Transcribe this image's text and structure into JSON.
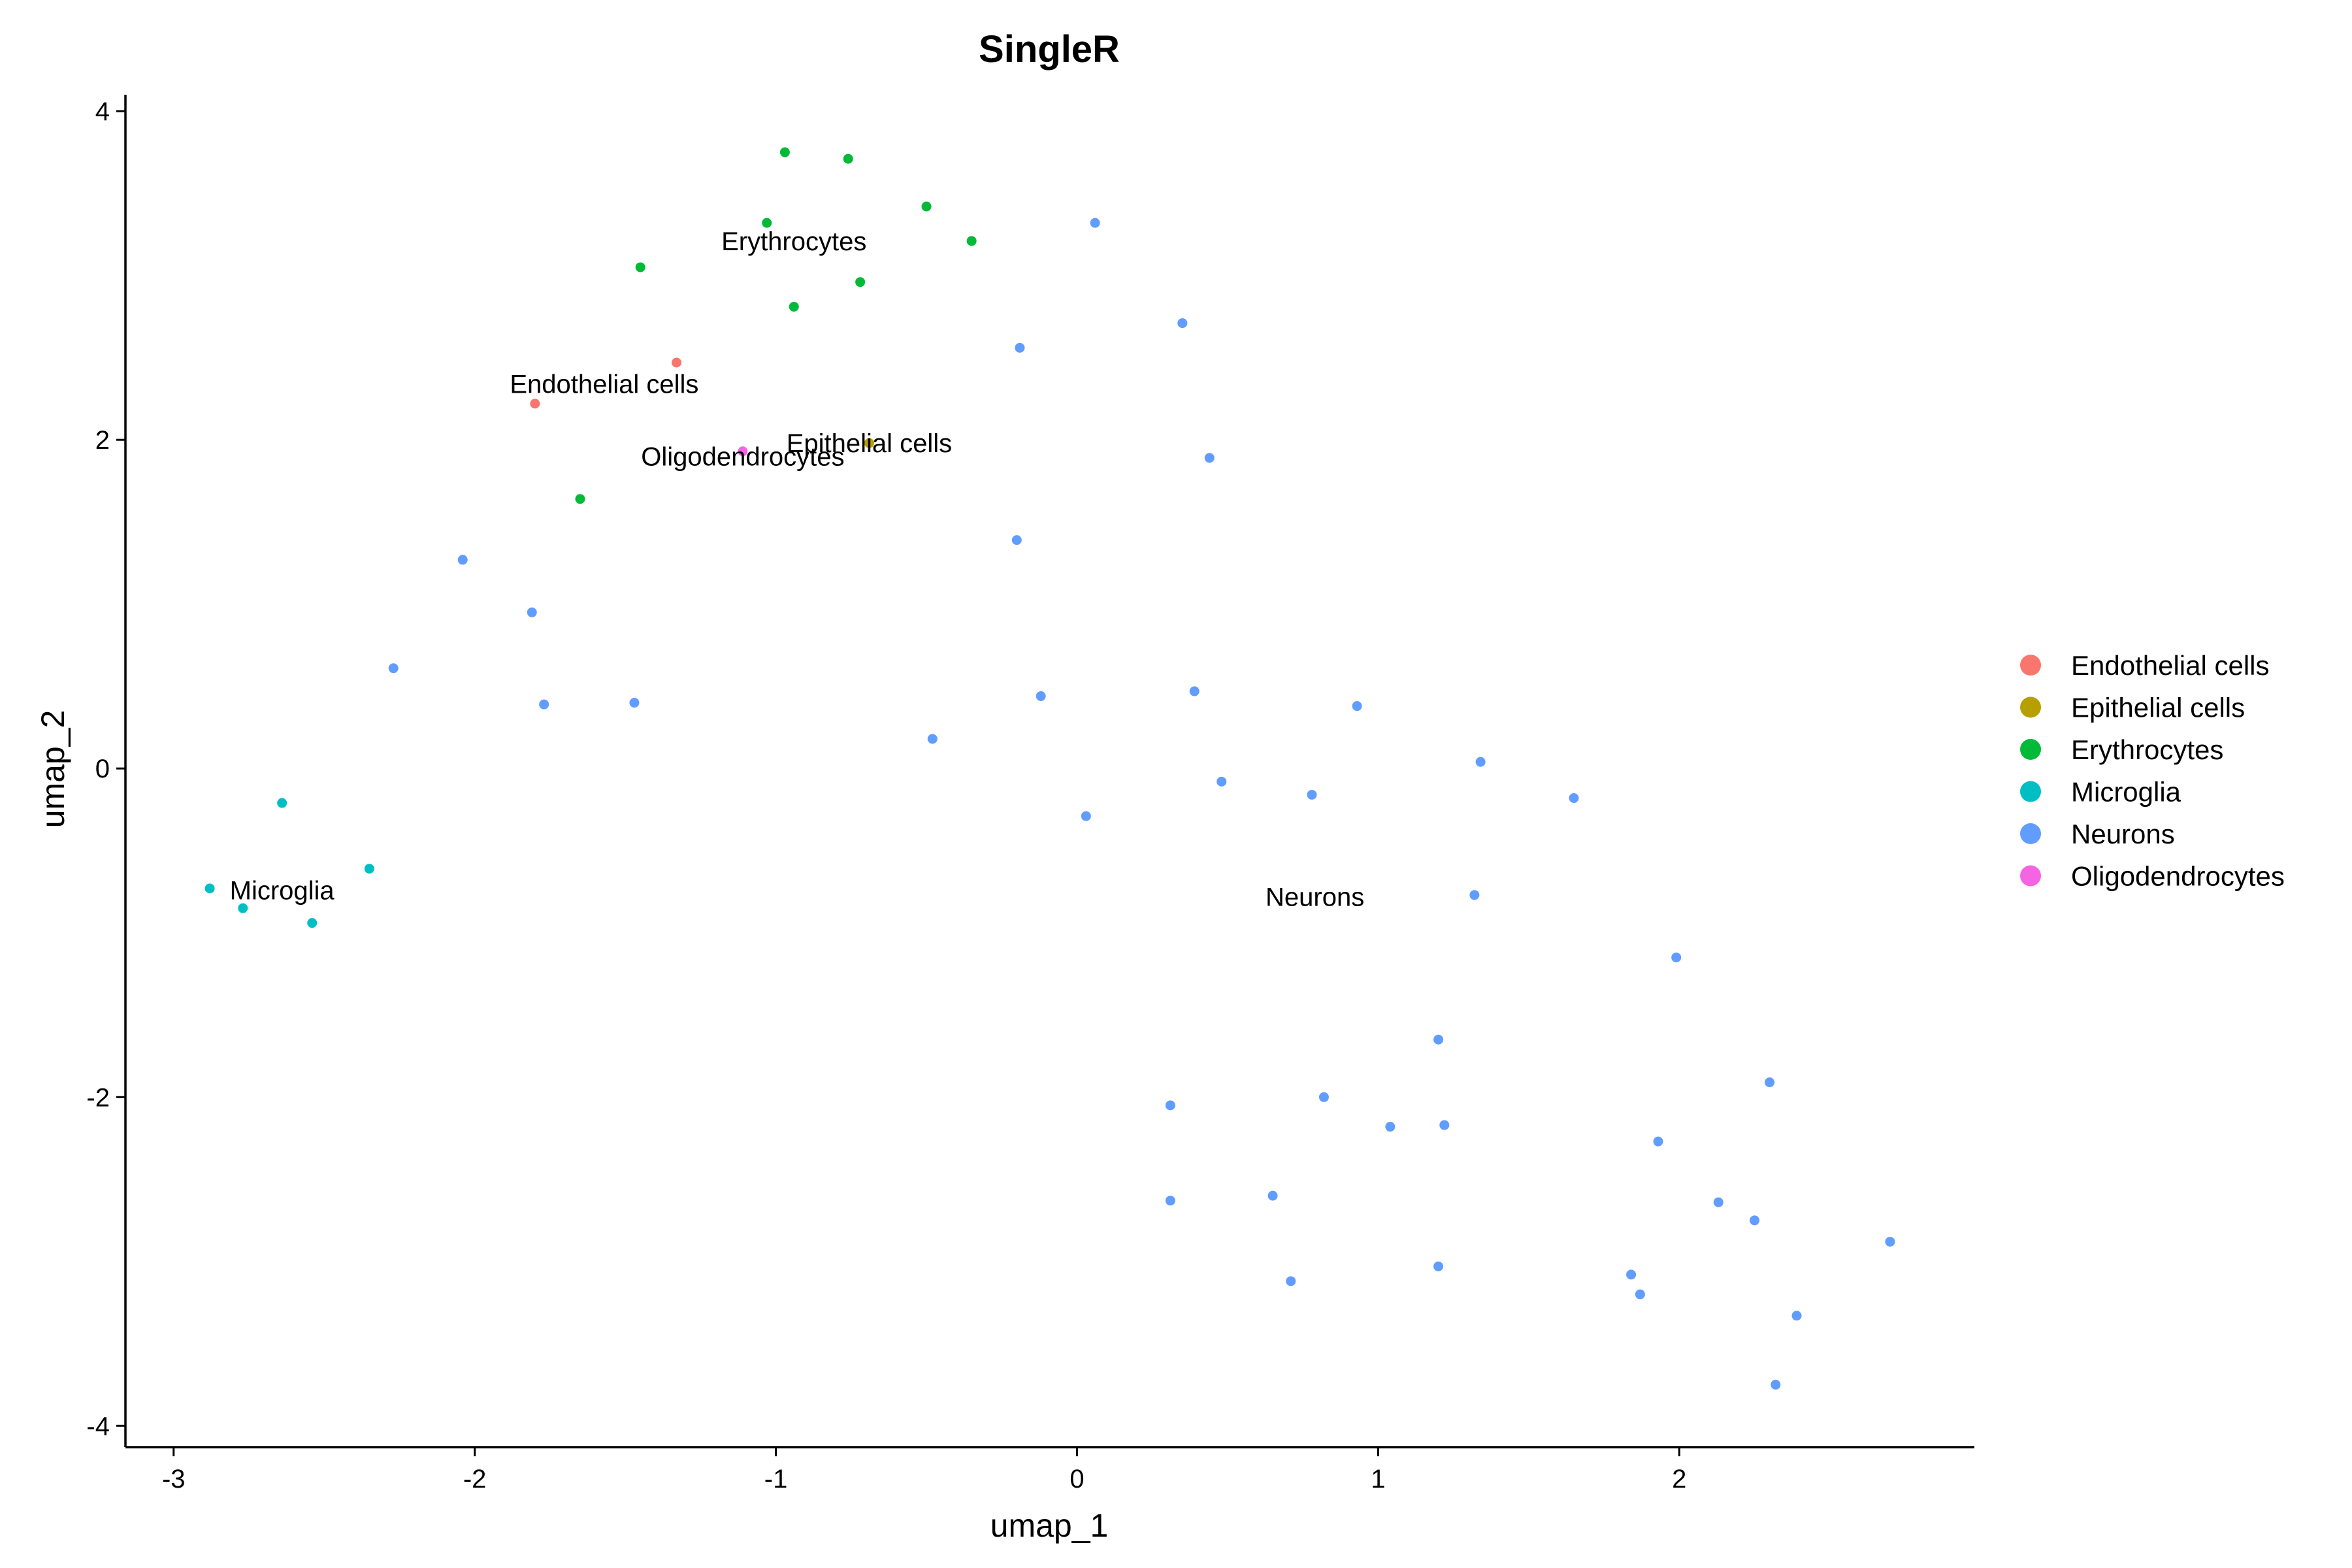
{
  "chart_data": {
    "type": "scatter",
    "title": "SingleR",
    "xlabel": "umap_1",
    "ylabel": "umap_2",
    "xlim": [
      -3.16,
      2.98
    ],
    "ylim": [
      -4.13,
      4.1
    ],
    "xticks": [
      -3,
      -2,
      -1,
      0,
      1,
      2
    ],
    "yticks": [
      -4,
      -2,
      0,
      2,
      4
    ],
    "grid": false,
    "legend_position": "right",
    "series": [
      {
        "name": "Endothelial cells",
        "color": "#F8766D",
        "points": [
          [
            -1.33,
            2.47
          ],
          [
            -1.8,
            2.22
          ]
        ]
      },
      {
        "name": "Epithelial cells",
        "color": "#B79F00",
        "points": [
          [
            -0.69,
            1.98
          ]
        ]
      },
      {
        "name": "Erythrocytes",
        "color": "#00BA38",
        "points": [
          [
            -0.97,
            3.75
          ],
          [
            -0.76,
            3.71
          ],
          [
            -0.5,
            3.42
          ],
          [
            -1.03,
            3.32
          ],
          [
            -0.35,
            3.21
          ],
          [
            -1.45,
            3.05
          ],
          [
            -0.72,
            2.96
          ],
          [
            -0.94,
            2.81
          ],
          [
            -1.65,
            1.64
          ]
        ]
      },
      {
        "name": "Microglia",
        "color": "#00BFC4",
        "points": [
          [
            -2.64,
            -0.21
          ],
          [
            -2.35,
            -0.61
          ],
          [
            -2.88,
            -0.73
          ],
          [
            -2.77,
            -0.85
          ],
          [
            -2.54,
            -0.94
          ]
        ]
      },
      {
        "name": "Neurons",
        "color": "#619CFF",
        "points": [
          [
            0.06,
            3.32
          ],
          [
            0.35,
            2.71
          ],
          [
            -0.19,
            2.56
          ],
          [
            0.44,
            1.89
          ],
          [
            -0.2,
            1.39
          ],
          [
            -2.04,
            1.27
          ],
          [
            -1.81,
            0.95
          ],
          [
            -2.27,
            0.61
          ],
          [
            -1.77,
            0.39
          ],
          [
            -1.47,
            0.4
          ],
          [
            0.39,
            0.47
          ],
          [
            -0.12,
            0.44
          ],
          [
            0.93,
            0.38
          ],
          [
            -0.48,
            0.18
          ],
          [
            1.34,
            0.04
          ],
          [
            0.48,
            -0.08
          ],
          [
            0.78,
            -0.16
          ],
          [
            1.65,
            -0.18
          ],
          [
            0.03,
            -0.29
          ],
          [
            1.32,
            -0.77
          ],
          [
            1.99,
            -1.15
          ],
          [
            1.2,
            -1.65
          ],
          [
            2.3,
            -1.91
          ],
          [
            0.82,
            -2.0
          ],
          [
            0.31,
            -2.05
          ],
          [
            1.04,
            -2.18
          ],
          [
            1.22,
            -2.17
          ],
          [
            1.93,
            -2.27
          ],
          [
            0.65,
            -2.6
          ],
          [
            0.31,
            -2.63
          ],
          [
            2.13,
            -2.64
          ],
          [
            2.25,
            -2.75
          ],
          [
            2.7,
            -2.88
          ],
          [
            1.2,
            -3.03
          ],
          [
            1.84,
            -3.08
          ],
          [
            0.71,
            -3.12
          ],
          [
            1.87,
            -3.2
          ],
          [
            2.39,
            -3.33
          ],
          [
            2.32,
            -3.75
          ]
        ]
      },
      {
        "name": "Oligodendrocytes",
        "color": "#F564E3",
        "points": [
          [
            -1.11,
            1.93
          ]
        ]
      }
    ],
    "annotations": [
      {
        "text": "Erythrocytes",
        "x": -0.94,
        "y": 3.21
      },
      {
        "text": "Endothelial cells",
        "x": -1.57,
        "y": 2.34
      },
      {
        "text": "Epithelial cells",
        "x": -0.69,
        "y": 1.98
      },
      {
        "text": "Oligodendrocytes",
        "x": -1.11,
        "y": 1.9
      },
      {
        "text": "Microglia",
        "x": -2.64,
        "y": -0.74
      },
      {
        "text": "Neurons",
        "x": 0.79,
        "y": -0.78
      }
    ]
  }
}
